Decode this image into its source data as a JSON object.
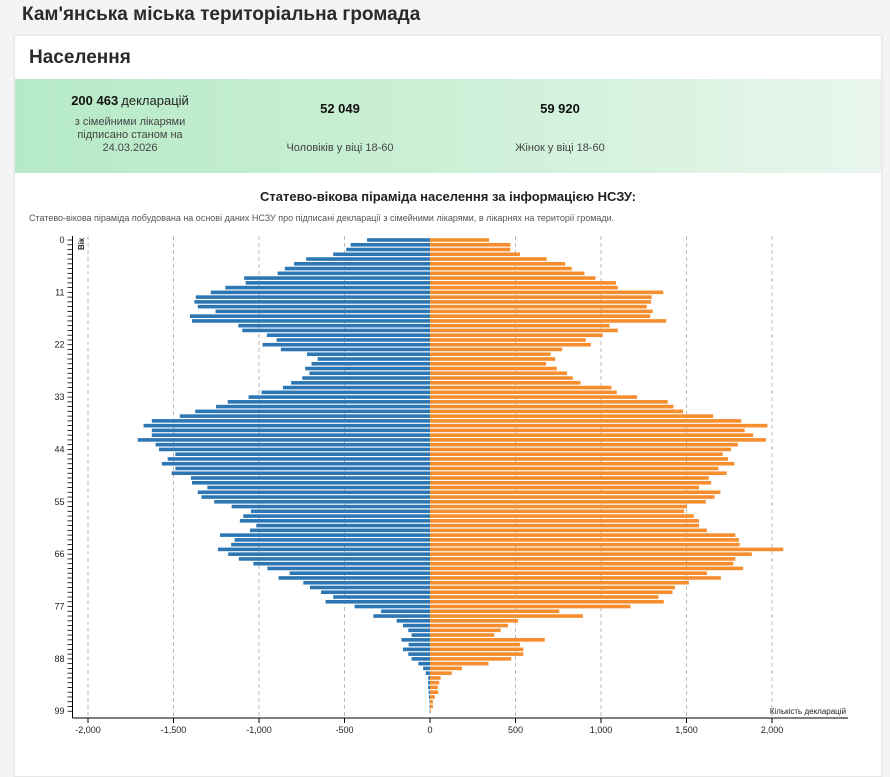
{
  "header": {
    "title": "Кам'янська міська територіальна громада"
  },
  "section": {
    "title": "Населення"
  },
  "stats": {
    "declarations": {
      "value": "200 463",
      "unit": "декларацій",
      "desc": "з сімейними лікарями підписано станом на 24.03.2026"
    },
    "men": {
      "value": "52 049",
      "desc": "Чоловіків у віці 18-60"
    },
    "women": {
      "value": "59 920",
      "desc": "Жінок у віці 18-60"
    }
  },
  "chart_data": {
    "type": "bar",
    "title": "Статево-вікова піраміда населення за інформацією НСЗУ:",
    "subtitle": "Статево-вікова піраміда побудована на основі даних НСЗУ про підписані декларації з сімейними лікарями, в лікарнях на території громади.",
    "ylabel": "Вік",
    "xlabel": "Кількість декларацій",
    "xlim": [
      -2000,
      2000
    ],
    "x_ticks": [
      "-2,000",
      "-1,500",
      "-1,000",
      "-500",
      "0",
      "500",
      "1,000",
      "1,500",
      "2,000"
    ],
    "x_tick_values": [
      -2000,
      -1500,
      -1000,
      -500,
      0,
      500,
      1000,
      1500,
      2000
    ],
    "y_tick_labels": [
      "0",
      "11",
      "22",
      "33",
      "44",
      "55",
      "66",
      "77",
      "88",
      "99"
    ],
    "colors": {
      "men": "#2c77b3",
      "women": "#f68d2e"
    },
    "series": [
      {
        "name": "Чоловіки",
        "values": [
          368,
          464,
          490,
          566,
          724,
          795,
          849,
          891,
          1087,
          1078,
          1197,
          1282,
          1370,
          1378,
          1358,
          1254,
          1404,
          1392,
          1121,
          1098,
          954,
          897,
          979,
          872,
          719,
          657,
          693,
          730,
          705,
          747,
          812,
          860,
          985,
          1061,
          1183,
          1251,
          1373,
          1463,
          1627,
          1675,
          1627,
          1627,
          1709,
          1605,
          1585,
          1489,
          1534,
          1568,
          1489,
          1511,
          1398,
          1392,
          1302,
          1358,
          1336,
          1262,
          1160,
          1047,
          1092,
          1112,
          1016,
          1053,
          1228,
          1143,
          1163,
          1240,
          1180,
          1118,
          1033,
          951,
          821,
          886,
          741,
          702,
          637,
          566,
          611,
          441,
          286,
          331,
          195,
          158,
          127,
          108,
          167,
          125,
          158,
          127,
          108,
          68,
          40,
          25,
          11,
          11,
          11,
          8,
          6,
          3,
          3,
          2
        ]
      },
      {
        "name": "Жінки",
        "values": [
          345,
          470,
          470,
          526,
          682,
          790,
          829,
          903,
          968,
          1087,
          1098,
          1364,
          1296,
          1293,
          1268,
          1302,
          1288,
          1381,
          1050,
          1098,
          1010,
          911,
          940,
          773,
          705,
          733,
          679,
          741,
          801,
          835,
          880,
          1061,
          1092,
          1211,
          1390,
          1423,
          1480,
          1656,
          1820,
          1973,
          1840,
          1890,
          1964,
          1800,
          1760,
          1712,
          1743,
          1780,
          1687,
          1735,
          1630,
          1644,
          1573,
          1698,
          1664,
          1613,
          1503,
          1486,
          1542,
          1573,
          1573,
          1619,
          1786,
          1806,
          1811,
          2066,
          1882,
          1786,
          1774,
          1831,
          1619,
          1701,
          1514,
          1432,
          1418,
          1336,
          1367,
          1172,
          756,
          894,
          515,
          456,
          413,
          376,
          671,
          526,
          546,
          546,
          475,
          342,
          187,
          127,
          62,
          54,
          45,
          48,
          28,
          17,
          17,
          6
        ]
      }
    ]
  }
}
